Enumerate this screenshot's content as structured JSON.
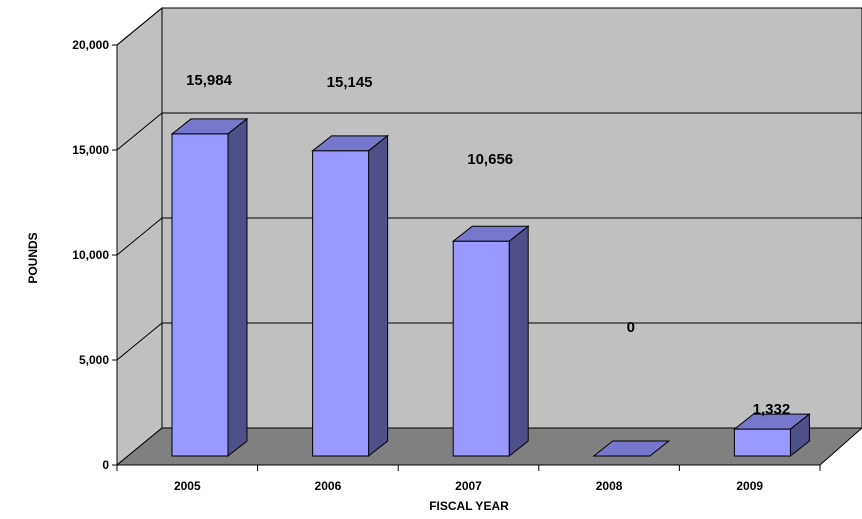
{
  "chart_data": {
    "type": "bar",
    "title": "",
    "xlabel": "FISCAL YEAR",
    "ylabel": "POUNDS",
    "categories": [
      "2005",
      "2006",
      "2007",
      "2008",
      "2009"
    ],
    "values": [
      15984,
      15145,
      10656,
      0,
      1332
    ],
    "data_labels": [
      "15,984",
      "15,145",
      "10,656",
      "0",
      "1,332"
    ],
    "yticks": [
      "0",
      "5,000",
      "10,000",
      "15,000",
      "20,000"
    ],
    "ytick_values": [
      0,
      5000,
      10000,
      15000,
      20000
    ],
    "ylim": [
      0,
      20000
    ],
    "grid": true,
    "legend": "none",
    "style": "3d",
    "colors": {
      "bar_front": "#9999ff",
      "bar_side": "#4f4f8a",
      "bar_top": "#7777cc",
      "wall": "#c0c0c0",
      "floor": "#808080"
    }
  }
}
